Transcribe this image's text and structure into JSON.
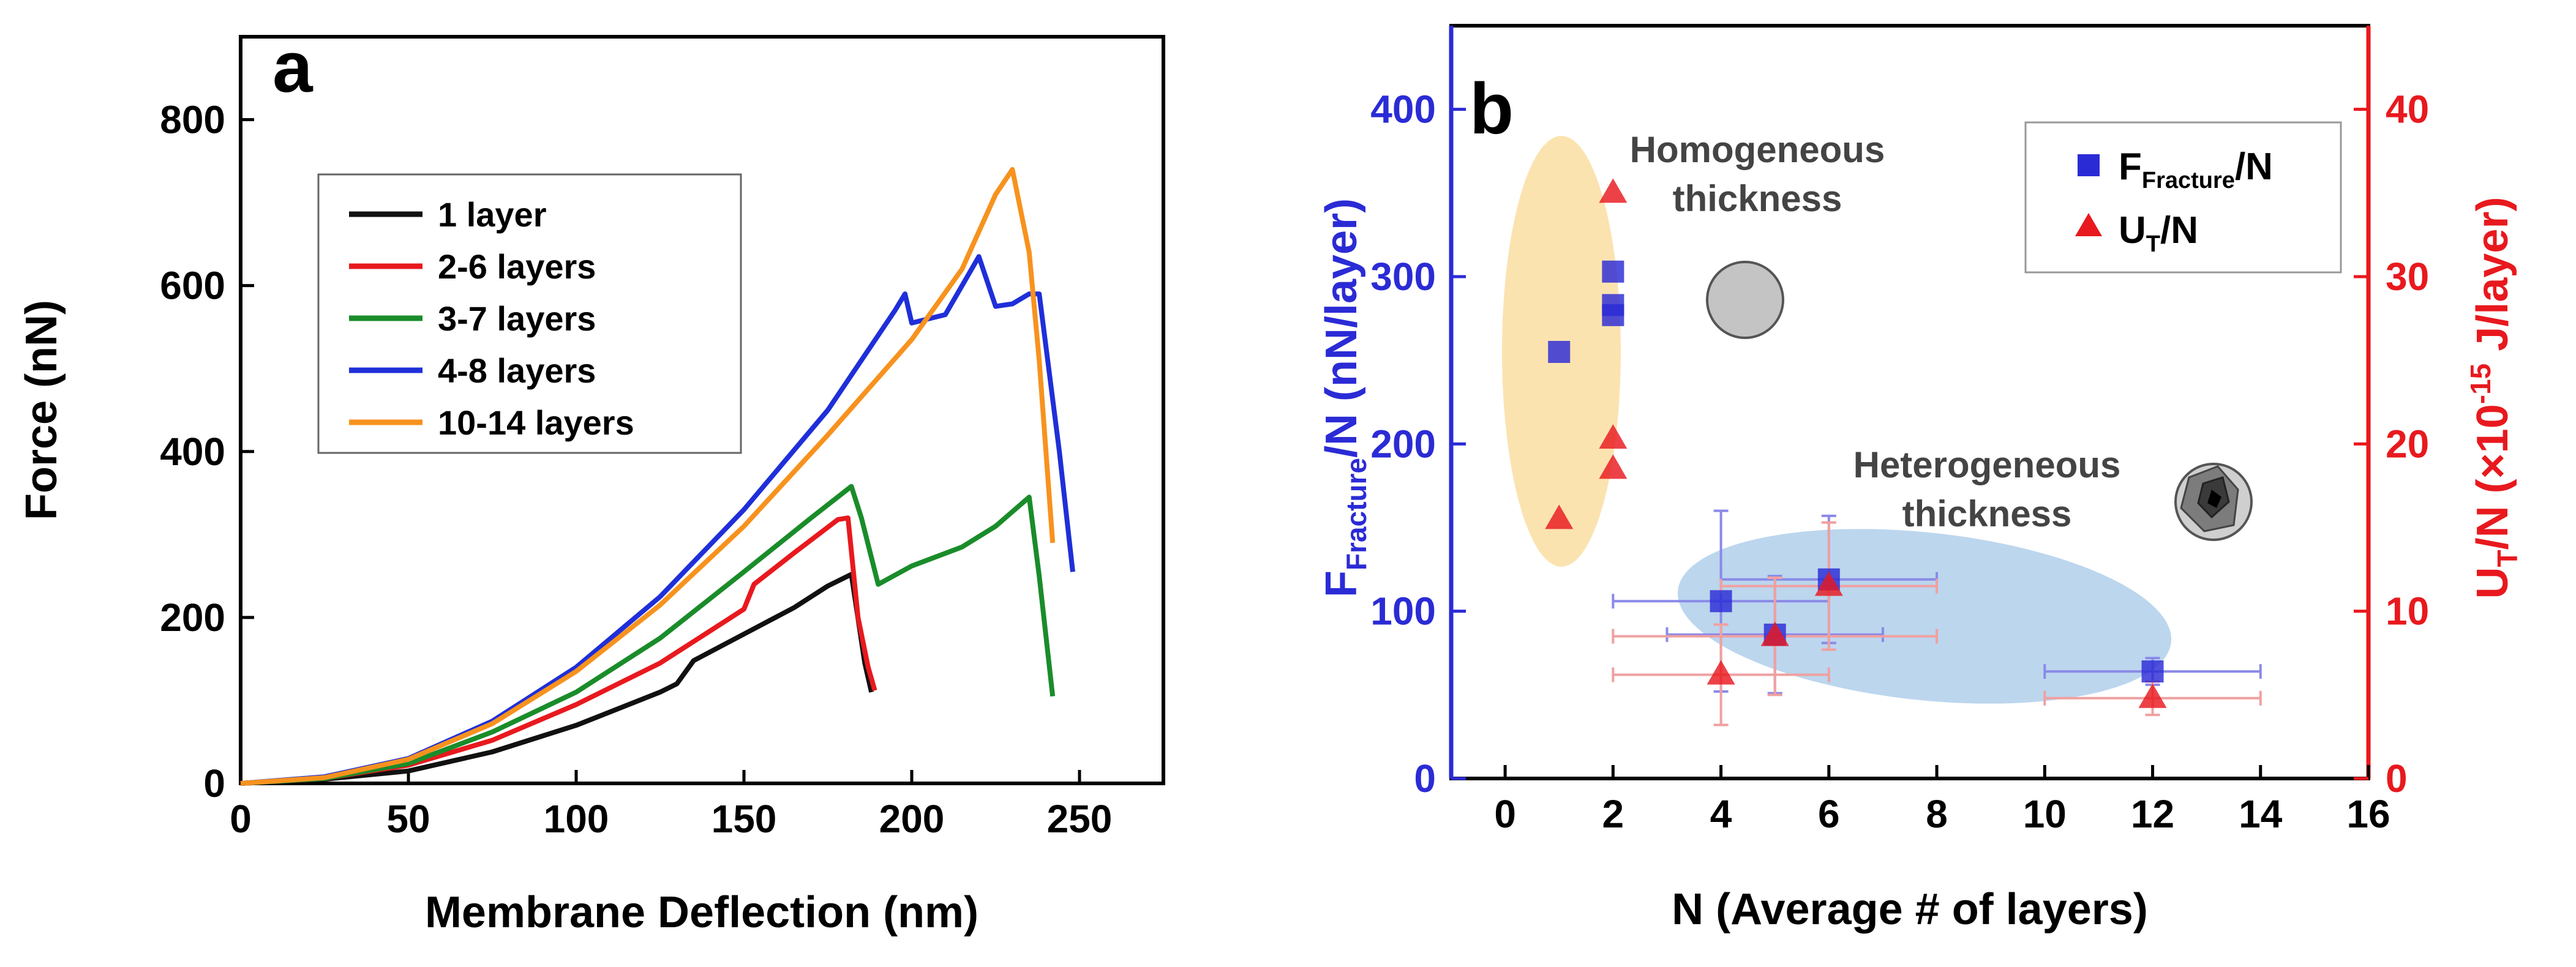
{
  "chart_data": [
    {
      "panel": "a",
      "type": "line",
      "xlabel": "Membrane Deflection (nm)",
      "ylabel": "Force (nN)",
      "xlim": [
        0,
        275
      ],
      "ylim": [
        0,
        900
      ],
      "xticks": [
        0,
        50,
        100,
        150,
        200,
        250
      ],
      "yticks": [
        0,
        200,
        400,
        600,
        800
      ],
      "legend_position": "upper-left",
      "series": [
        {
          "name": "1 layer",
          "color": "#111111",
          "points": [
            [
              0,
              0
            ],
            [
              25,
              5
            ],
            [
              50,
              15
            ],
            [
              75,
              38
            ],
            [
              100,
              70
            ],
            [
              125,
              110
            ],
            [
              130,
              120
            ],
            [
              135,
              148
            ],
            [
              150,
              180
            ],
            [
              165,
              212
            ],
            [
              175,
              238
            ],
            [
              182,
              252
            ],
            [
              186,
              145
            ],
            [
              188,
              110
            ]
          ]
        },
        {
          "name": "2-6 layers",
          "color": "#e8191e",
          "points": [
            [
              0,
              0
            ],
            [
              25,
              6
            ],
            [
              50,
              22
            ],
            [
              75,
              52
            ],
            [
              100,
              95
            ],
            [
              125,
              145
            ],
            [
              150,
              210
            ],
            [
              153,
              240
            ],
            [
              165,
              278
            ],
            [
              178,
              318
            ],
            [
              181,
              320
            ],
            [
              184,
              200
            ],
            [
              187,
              140
            ],
            [
              189,
              112
            ]
          ]
        },
        {
          "name": "3-7 layers",
          "color": "#1a8c2a",
          "points": [
            [
              0,
              0
            ],
            [
              25,
              6
            ],
            [
              50,
              24
            ],
            [
              75,
              62
            ],
            [
              100,
              110
            ],
            [
              125,
              175
            ],
            [
              150,
              255
            ],
            [
              170,
              320
            ],
            [
              182,
              358
            ],
            [
              185,
              320
            ],
            [
              190,
              240
            ],
            [
              200,
              262
            ],
            [
              215,
              285
            ],
            [
              225,
              310
            ],
            [
              235,
              345
            ],
            [
              238,
              250
            ],
            [
              242,
              105
            ]
          ]
        },
        {
          "name": "4-8 layers",
          "color": "#1f2fd9",
          "points": [
            [
              0,
              0
            ],
            [
              25,
              8
            ],
            [
              50,
              30
            ],
            [
              75,
              75
            ],
            [
              100,
              140
            ],
            [
              125,
              225
            ],
            [
              150,
              330
            ],
            [
              175,
              450
            ],
            [
              195,
              570
            ],
            [
              198,
              590
            ],
            [
              200,
              555
            ],
            [
              210,
              565
            ],
            [
              215,
              600
            ],
            [
              220,
              635
            ],
            [
              225,
              575
            ],
            [
              230,
              578
            ],
            [
              235,
              590
            ],
            [
              238,
              590
            ],
            [
              244,
              400
            ],
            [
              248,
              255
            ]
          ]
        },
        {
          "name": "10-14 layers",
          "color": "#f7921e",
          "points": [
            [
              0,
              0
            ],
            [
              25,
              7
            ],
            [
              50,
              29
            ],
            [
              75,
              72
            ],
            [
              100,
              135
            ],
            [
              125,
              215
            ],
            [
              150,
              310
            ],
            [
              175,
              420
            ],
            [
              200,
              535
            ],
            [
              215,
              620
            ],
            [
              225,
              710
            ],
            [
              230,
              740
            ],
            [
              235,
              640
            ],
            [
              238,
              510
            ],
            [
              242,
              290
            ]
          ]
        }
      ]
    },
    {
      "panel": "b",
      "type": "scatter",
      "xlabel": "N (Average # of layers)",
      "ylabel_left_main": "F",
      "ylabel_left_sub": "Fracture",
      "ylabel_left_tail": "/N (nN/layer)",
      "ylabel_right_main": "U",
      "ylabel_right_sub": "T",
      "ylabel_right_mid": "/N (×10",
      "ylabel_right_sup": "-15",
      "ylabel_right_tail": " J/layer)",
      "xlim": [
        -1,
        16
      ],
      "ylim_left": [
        0,
        450
      ],
      "ylim_right": [
        0,
        45
      ],
      "xticks": [
        0,
        2,
        4,
        6,
        8,
        10,
        12,
        14,
        16
      ],
      "yticks_left": [
        0,
        100,
        200,
        300,
        400
      ],
      "yticks_right": [
        0,
        10,
        20,
        30,
        40
      ],
      "left_axis_color": "#2b2bd6",
      "right_axis_color": "#e8191e",
      "legend_position": "upper-right",
      "legend": [
        {
          "main": "F",
          "sub": "Fracture",
          "tail": "/N",
          "marker": "square",
          "color": "#2b2bd6"
        },
        {
          "main": "U",
          "sub": "T",
          "tail": "/N",
          "marker": "triangle",
          "color": "#e8191e"
        }
      ],
      "series": [
        {
          "name": "FFracture/N",
          "axis": "left",
          "marker": "square",
          "color": "#2b2bd6",
          "points": [
            {
              "x": 1,
              "y": 255
            },
            {
              "x": 2,
              "y": 303
            },
            {
              "x": 2,
              "y": 283
            },
            {
              "x": 2,
              "y": 277
            },
            {
              "x": 4,
              "y": 106,
              "xerr": 2,
              "yerr": 54
            },
            {
              "x": 5,
              "y": 86,
              "xerr": 2,
              "yerr": 35
            },
            {
              "x": 6,
              "y": 119,
              "xerr": 2,
              "yerr": 38
            },
            {
              "x": 12,
              "y": 64,
              "xerr": 2,
              "yerr": 8
            }
          ]
        },
        {
          "name": "UT/N",
          "axis": "right",
          "marker": "triangle",
          "color": "#e8191e",
          "points": [
            {
              "x": 1,
              "y": 15.5
            },
            {
              "x": 2,
              "y": 35
            },
            {
              "x": 2,
              "y": 20.3
            },
            {
              "x": 2,
              "y": 18.5
            },
            {
              "x": 4,
              "y": 6.2,
              "xerr": 2,
              "yerr": 3
            },
            {
              "x": 5,
              "y": 8.5,
              "xerr": 3,
              "yerr": 3.5
            },
            {
              "x": 6,
              "y": 11.5,
              "xerr": 2,
              "yerr": 3.8
            },
            {
              "x": 12,
              "y": 4.8,
              "xerr": 2,
              "yerr": 1
            }
          ]
        }
      ],
      "annotations": {
        "homogeneous": [
          "Homogeneous",
          "thickness"
        ],
        "heterogeneous": [
          "Heterogeneous",
          "thickness"
        ]
      },
      "highlight_colors": {
        "homogeneous": "#fbe3b0",
        "heterogeneous": "#bcd6ee"
      }
    }
  ]
}
